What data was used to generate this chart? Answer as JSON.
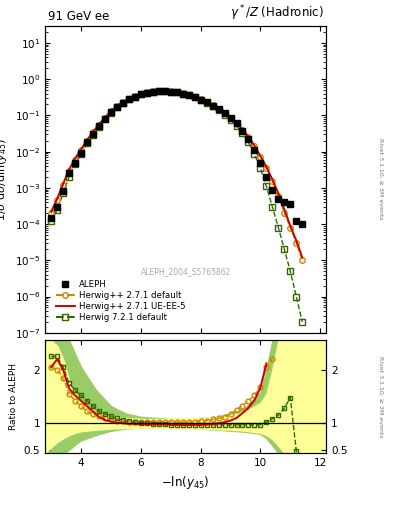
{
  "title_left": "91 GeV ee",
  "title_right": "γ*/Z (Hadronic)",
  "ylabel_main": "1/σ dσ/dln(y_{45})",
  "ylabel_ratio": "Ratio to ALEPH",
  "xlabel": "-ln(y_{45})",
  "right_label": "Rivet 3.1.10, ≥ 3M events",
  "watermark": "ALEPH_2004_S5765862",
  "xlim": [
    2.8,
    12.2
  ],
  "ylim_main": [
    1e-07,
    30
  ],
  "ylim_ratio": [
    0.44,
    2.55
  ],
  "ratio_yticks": [
    0.5,
    1.0,
    2.0
  ],
  "x_data": [
    3.0,
    3.2,
    3.4,
    3.6,
    3.8,
    4.0,
    4.2,
    4.4,
    4.6,
    4.8,
    5.0,
    5.2,
    5.4,
    5.6,
    5.8,
    6.0,
    6.2,
    6.4,
    6.6,
    6.8,
    7.0,
    7.2,
    7.4,
    7.6,
    7.8,
    8.0,
    8.2,
    8.4,
    8.6,
    8.8,
    9.0,
    9.2,
    9.4,
    9.6,
    9.8,
    10.0,
    10.2,
    10.4,
    10.6,
    10.8,
    11.0,
    11.2,
    11.4
  ],
  "aleph_y": [
    0.00015,
    0.0003,
    0.0008,
    0.0025,
    0.005,
    0.009,
    0.018,
    0.03,
    0.05,
    0.08,
    0.12,
    0.17,
    0.22,
    0.28,
    0.33,
    0.38,
    0.42,
    0.45,
    0.46,
    0.46,
    0.45,
    0.43,
    0.4,
    0.36,
    0.32,
    0.27,
    0.23,
    0.185,
    0.15,
    0.115,
    0.085,
    0.06,
    0.038,
    0.022,
    0.011,
    0.005,
    0.002,
    0.0009,
    0.0005,
    0.0004,
    0.00035,
    0.00012,
    0.0001
  ],
  "hw271_default_y": [
    0.0002,
    0.00045,
    0.0012,
    0.003,
    0.006,
    0.011,
    0.02,
    0.034,
    0.055,
    0.085,
    0.13,
    0.18,
    0.23,
    0.29,
    0.34,
    0.39,
    0.43,
    0.46,
    0.47,
    0.47,
    0.46,
    0.44,
    0.41,
    0.37,
    0.33,
    0.28,
    0.235,
    0.19,
    0.15,
    0.115,
    0.085,
    0.06,
    0.04,
    0.025,
    0.014,
    0.007,
    0.0035,
    0.0015,
    0.0006,
    0.0002,
    8e-05,
    3e-05,
    1e-05
  ],
  "hw271_uee5_y": [
    0.00022,
    0.0005,
    0.0013,
    0.0032,
    0.0065,
    0.0115,
    0.021,
    0.035,
    0.057,
    0.088,
    0.132,
    0.182,
    0.232,
    0.292,
    0.342,
    0.392,
    0.432,
    0.462,
    0.472,
    0.472,
    0.462,
    0.442,
    0.412,
    0.372,
    0.332,
    0.282,
    0.237,
    0.192,
    0.152,
    0.117,
    0.087,
    0.061,
    0.041,
    0.026,
    0.0145,
    0.0075,
    0.0038,
    0.0017,
    0.0007,
    0.00025,
    9e-05,
    3.5e-05,
    1.2e-05
  ],
  "hw721_default_y": [
    0.00012,
    0.00025,
    0.0007,
    0.002,
    0.0045,
    0.0085,
    0.017,
    0.029,
    0.049,
    0.078,
    0.118,
    0.168,
    0.218,
    0.278,
    0.328,
    0.378,
    0.418,
    0.448,
    0.458,
    0.458,
    0.448,
    0.428,
    0.398,
    0.358,
    0.318,
    0.268,
    0.225,
    0.18,
    0.14,
    0.105,
    0.075,
    0.051,
    0.032,
    0.018,
    0.0085,
    0.0035,
    0.0011,
    0.0003,
    8e-05,
    2e-05,
    5e-06,
    1e-06,
    2e-07
  ],
  "color_aleph": "#000000",
  "color_hw271_default": "#cc8800",
  "color_hw271_uee5": "#cc0000",
  "color_hw721_default": "#336600",
  "color_band_yellow": "#ffff99",
  "color_band_green": "#99cc66",
  "ratio_hw271_default": [
    2.05,
    2.0,
    1.85,
    1.55,
    1.42,
    1.32,
    1.22,
    1.17,
    1.13,
    1.09,
    1.07,
    1.05,
    1.04,
    1.03,
    1.03,
    1.03,
    1.03,
    1.03,
    1.03,
    1.03,
    1.03,
    1.02,
    1.02,
    1.02,
    1.03,
    1.04,
    1.05,
    1.07,
    1.09,
    1.12,
    1.18,
    1.25,
    1.33,
    1.42,
    1.52,
    1.68,
    2.05,
    2.2,
    null,
    null,
    null,
    null,
    null
  ],
  "ratio_hw721_default": [
    2.25,
    2.25,
    2.05,
    1.75,
    1.62,
    1.52,
    1.42,
    1.32,
    1.22,
    1.17,
    1.13,
    1.09,
    1.06,
    1.04,
    1.02,
    1.01,
    1.0,
    0.99,
    0.98,
    0.98,
    0.97,
    0.97,
    0.97,
    0.97,
    0.97,
    0.97,
    0.97,
    0.97,
    0.97,
    0.97,
    0.97,
    0.97,
    0.97,
    0.97,
    0.97,
    0.97,
    1.02,
    1.08,
    1.15,
    1.28,
    1.48,
    0.48,
    0.38
  ],
  "ratio_hw271_uee5": [
    2.05,
    2.2,
    2.0,
    1.65,
    1.52,
    1.42,
    1.32,
    1.22,
    1.12,
    1.06,
    1.03,
    1.01,
    1.0,
    0.99,
    0.99,
    0.98,
    0.98,
    0.98,
    0.98,
    0.98,
    0.97,
    0.97,
    0.97,
    0.97,
    0.97,
    0.97,
    0.98,
    0.99,
    1.0,
    1.02,
    1.05,
    1.1,
    1.19,
    1.29,
    1.43,
    1.67,
    2.12,
    null,
    null,
    null,
    null,
    null,
    null
  ],
  "band_yellow_x": [
    2.8,
    3.0,
    3.2,
    3.4,
    3.6,
    3.8,
    4.0,
    4.5,
    5.0,
    5.5,
    6.0,
    6.5,
    7.0,
    7.5,
    8.0,
    8.5,
    9.0,
    9.5,
    10.0,
    10.2,
    10.4,
    10.6,
    10.8,
    11.0,
    11.5,
    12.0,
    12.2
  ],
  "band_yellow_lo": [
    0.44,
    0.55,
    0.65,
    0.72,
    0.78,
    0.82,
    0.85,
    0.88,
    0.9,
    0.91,
    0.92,
    0.92,
    0.92,
    0.91,
    0.9,
    0.89,
    0.88,
    0.86,
    0.82,
    0.78,
    0.7,
    0.58,
    0.44,
    0.44,
    0.44,
    0.44,
    0.44
  ],
  "band_yellow_hi": [
    2.55,
    2.55,
    2.45,
    2.2,
    1.8,
    1.55,
    1.42,
    1.2,
    1.12,
    1.1,
    1.08,
    1.08,
    1.08,
    1.09,
    1.1,
    1.12,
    1.15,
    1.22,
    1.38,
    1.55,
    2.0,
    2.55,
    2.55,
    2.55,
    2.55,
    2.55,
    2.55
  ],
  "band_green_x": [
    2.8,
    3.0,
    3.2,
    3.4,
    3.6,
    3.8,
    4.0,
    4.5,
    5.0,
    5.5,
    6.0,
    6.5,
    7.0,
    7.5,
    8.0,
    8.5,
    9.0,
    9.5,
    10.0,
    10.2,
    10.4,
    10.6,
    10.8,
    11.0,
    11.2,
    11.4,
    11.6,
    12.0,
    12.2
  ],
  "band_green_lo": [
    0.44,
    0.44,
    0.44,
    0.44,
    0.5,
    0.6,
    0.68,
    0.78,
    0.86,
    0.9,
    0.92,
    0.93,
    0.93,
    0.92,
    0.9,
    0.88,
    0.86,
    0.84,
    0.8,
    0.72,
    0.58,
    0.44,
    0.44,
    0.44,
    0.44,
    0.44,
    0.44,
    0.44,
    0.44
  ],
  "band_green_hi": [
    2.55,
    2.55,
    2.55,
    2.55,
    2.55,
    2.3,
    2.05,
    1.62,
    1.32,
    1.18,
    1.12,
    1.1,
    1.08,
    1.08,
    1.1,
    1.12,
    1.18,
    1.3,
    1.58,
    2.0,
    2.55,
    2.55,
    2.55,
    2.55,
    2.55,
    2.55,
    2.55,
    2.55,
    2.55
  ]
}
